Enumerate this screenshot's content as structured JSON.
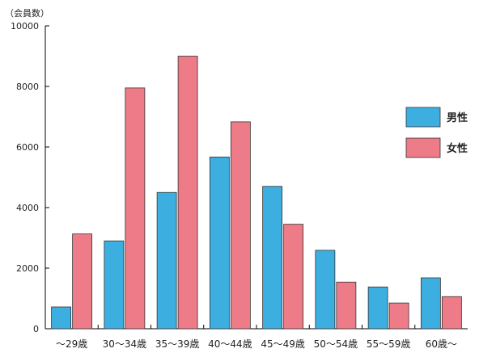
{
  "chart_data": {
    "type": "bar",
    "ylabel": "（会員数）",
    "ylim": [
      0,
      10000
    ],
    "yticks": [
      "0",
      "2000",
      "4000",
      "6000",
      "8000",
      "10000"
    ],
    "categories": [
      "～29歳",
      "30～34歳",
      "35～39歳",
      "40～44歳",
      "45～49歳",
      "50～54歳",
      "55～59歳",
      "60歳～"
    ],
    "series": [
      {
        "name": "男性",
        "color": "#3daee0",
        "values": [
          720,
          2900,
          4500,
          5670,
          4700,
          2590,
          1380,
          1680
        ]
      },
      {
        "name": "女性",
        "color": "#ee7b88",
        "values": [
          3130,
          7950,
          9000,
          6830,
          3450,
          1540,
          850,
          1060
        ]
      }
    ],
    "legend_position": "right",
    "grid": false
  }
}
